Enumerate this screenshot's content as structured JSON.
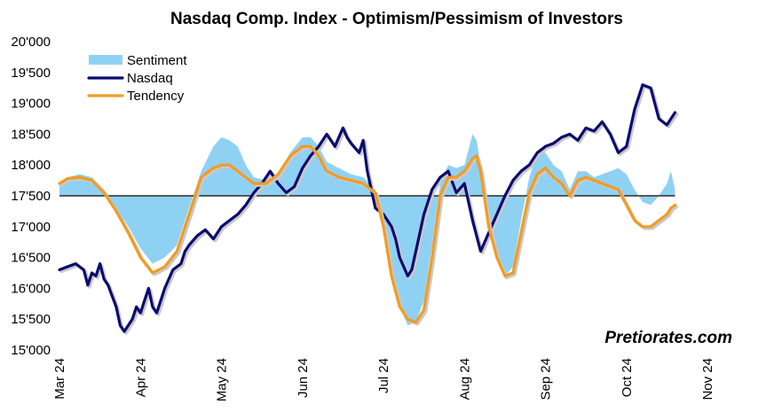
{
  "chart_data": {
    "type": "line",
    "title": "Nasdaq Comp. Index - Optimism/Pessimism of Investors",
    "xlabel": "",
    "ylabel": "",
    "ylim": [
      15000,
      20000
    ],
    "baseline": 17500,
    "yticks": [
      "15'000",
      "15'500",
      "16'000",
      "16'500",
      "17'000",
      "17'500",
      "18'000",
      "18'500",
      "19'000",
      "19'500",
      "20'000"
    ],
    "xticks": [
      "Mar 24",
      "Apr 24",
      "May 24",
      "Jun 24",
      "Jul 24",
      "Aug 24",
      "Sep 24",
      "Oct 24",
      "Nov 24"
    ],
    "x_domain": [
      0,
      8
    ],
    "grid": false,
    "legend_position": "top-left",
    "watermark": "Pretiorates.com",
    "series": [
      {
        "name": "Sentiment",
        "kind": "area",
        "color": "#8fd1f3",
        "x": [
          0,
          0.1,
          0.25,
          0.4,
          0.55,
          0.7,
          0.85,
          1.0,
          1.15,
          1.3,
          1.45,
          1.6,
          1.75,
          1.9,
          2.0,
          2.1,
          2.2,
          2.3,
          2.4,
          2.55,
          2.7,
          2.85,
          3.0,
          3.1,
          3.2,
          3.3,
          3.45,
          3.6,
          3.75,
          3.9,
          4.0,
          4.1,
          4.2,
          4.3,
          4.4,
          4.5,
          4.6,
          4.7,
          4.8,
          4.9,
          5.0,
          5.1,
          5.15,
          5.2,
          5.3,
          5.4,
          5.5,
          5.6,
          5.7,
          5.8,
          5.9,
          6.0,
          6.1,
          6.2,
          6.3,
          6.4,
          6.5,
          6.6,
          6.7,
          6.8,
          6.9,
          7.0,
          7.1,
          7.2,
          7.3,
          7.4,
          7.5,
          7.55,
          7.6
        ],
        "y": [
          17700,
          17800,
          17850,
          17800,
          17600,
          17300,
          17000,
          16650,
          16400,
          16500,
          16700,
          17300,
          17900,
          18300,
          18450,
          18400,
          18300,
          18000,
          17800,
          17750,
          17850,
          18200,
          18450,
          18450,
          18300,
          18050,
          17950,
          17850,
          17800,
          17600,
          17050,
          16300,
          15700,
          15400,
          15450,
          15800,
          16700,
          17700,
          18000,
          17950,
          18000,
          18500,
          18400,
          18000,
          17100,
          16600,
          16200,
          16350,
          17100,
          17800,
          18200,
          18200,
          18000,
          17900,
          17600,
          17900,
          17900,
          17800,
          17850,
          17900,
          17950,
          17850,
          17600,
          17400,
          17350,
          17500,
          17700,
          17900,
          17600
        ]
      },
      {
        "name": "Nasdaq",
        "kind": "line",
        "color": "#0b0b6e",
        "x": [
          0,
          0.1,
          0.2,
          0.3,
          0.35,
          0.4,
          0.45,
          0.5,
          0.55,
          0.6,
          0.7,
          0.75,
          0.8,
          0.9,
          0.95,
          1.0,
          1.05,
          1.1,
          1.15,
          1.2,
          1.25,
          1.3,
          1.4,
          1.5,
          1.55,
          1.6,
          1.7,
          1.8,
          1.9,
          2.0,
          2.1,
          2.2,
          2.3,
          2.4,
          2.5,
          2.6,
          2.7,
          2.8,
          2.9,
          2.95,
          3.0,
          3.1,
          3.2,
          3.3,
          3.4,
          3.5,
          3.55,
          3.6,
          3.7,
          3.75,
          3.8,
          3.9,
          4.0,
          4.1,
          4.15,
          4.2,
          4.3,
          4.35,
          4.4,
          4.5,
          4.6,
          4.7,
          4.8,
          4.9,
          5.0,
          5.1,
          5.2,
          5.3,
          5.4,
          5.5,
          5.6,
          5.7,
          5.8,
          5.9,
          6.0,
          6.1,
          6.2,
          6.3,
          6.4,
          6.5,
          6.6,
          6.7,
          6.8,
          6.9,
          7.0,
          7.1,
          7.2,
          7.3,
          7.4,
          7.5,
          7.55,
          7.6
        ],
        "y": [
          16300,
          16350,
          16400,
          16300,
          16050,
          16250,
          16200,
          16400,
          16150,
          16050,
          15700,
          15400,
          15300,
          15500,
          15700,
          15600,
          15800,
          16000,
          15700,
          15600,
          15800,
          16000,
          16300,
          16400,
          16600,
          16700,
          16850,
          16950,
          16800,
          17000,
          17100,
          17200,
          17350,
          17550,
          17700,
          17900,
          17700,
          17550,
          17650,
          17800,
          17950,
          18150,
          18300,
          18500,
          18300,
          18600,
          18450,
          18350,
          18200,
          18400,
          17900,
          17300,
          17200,
          17000,
          16800,
          16500,
          16200,
          16300,
          16600,
          17200,
          17600,
          17800,
          17900,
          17550,
          17700,
          17100,
          16600,
          16900,
          17200,
          17500,
          17750,
          17900,
          18000,
          18200,
          18300,
          18350,
          18450,
          18500,
          18400,
          18600,
          18550,
          18700,
          18500,
          18200,
          18300,
          18900,
          19300,
          19250,
          18750,
          18650,
          18750,
          18850
        ]
      },
      {
        "name": "Tendency",
        "kind": "line",
        "color": "#f29b22",
        "x": [
          0,
          0.1,
          0.25,
          0.4,
          0.55,
          0.7,
          0.85,
          1.0,
          1.15,
          1.3,
          1.45,
          1.6,
          1.75,
          1.9,
          2.0,
          2.1,
          2.2,
          2.3,
          2.4,
          2.55,
          2.7,
          2.85,
          3.0,
          3.1,
          3.2,
          3.3,
          3.45,
          3.6,
          3.75,
          3.9,
          4.0,
          4.1,
          4.2,
          4.3,
          4.4,
          4.5,
          4.6,
          4.7,
          4.8,
          4.9,
          5.0,
          5.1,
          5.15,
          5.2,
          5.3,
          5.4,
          5.5,
          5.6,
          5.7,
          5.8,
          5.9,
          6.0,
          6.1,
          6.2,
          6.3,
          6.4,
          6.5,
          6.6,
          6.7,
          6.8,
          6.9,
          7.0,
          7.1,
          7.2,
          7.3,
          7.4,
          7.5,
          7.55,
          7.6
        ],
        "y": [
          17700,
          17780,
          17800,
          17750,
          17550,
          17250,
          16900,
          16500,
          16250,
          16350,
          16600,
          17200,
          17800,
          17950,
          18000,
          18000,
          17900,
          17800,
          17700,
          17700,
          17850,
          18150,
          18300,
          18300,
          18150,
          17900,
          17800,
          17750,
          17700,
          17550,
          17000,
          16200,
          15700,
          15500,
          15450,
          15650,
          16500,
          17500,
          17800,
          17800,
          17900,
          18100,
          18150,
          17900,
          17000,
          16500,
          16200,
          16250,
          16900,
          17550,
          17850,
          17950,
          17800,
          17700,
          17500,
          17750,
          17800,
          17750,
          17700,
          17650,
          17600,
          17350,
          17100,
          17000,
          17000,
          17100,
          17200,
          17300,
          17350
        ]
      }
    ]
  }
}
